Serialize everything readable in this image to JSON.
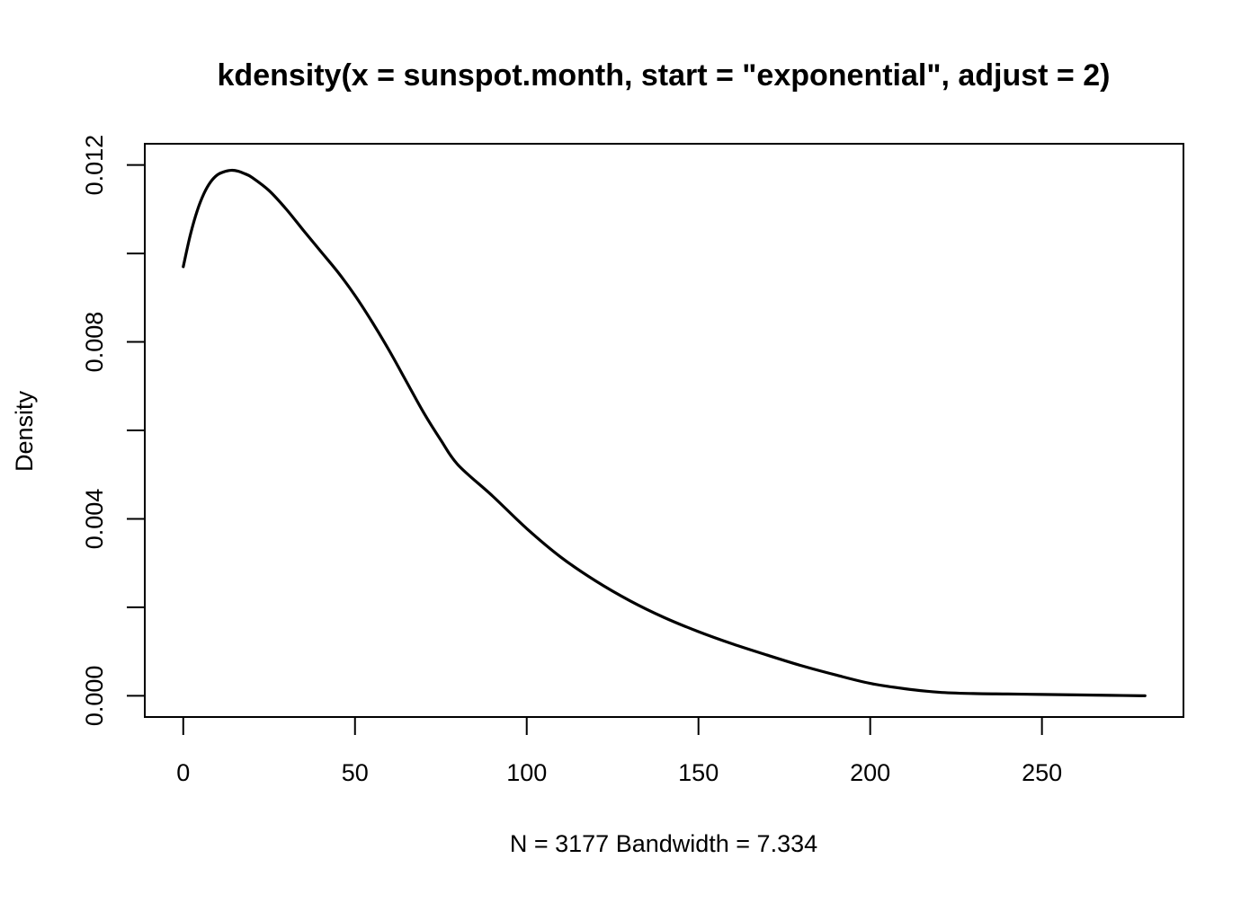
{
  "chart_data": {
    "type": "line",
    "title": "kdensity(x = sunspot.month, start = \"exponential\", adjust = 2)",
    "xlabel": "N = 3177   Bandwidth = 7.334",
    "ylabel": "Density",
    "xlim": [
      -11.2,
      291.2
    ],
    "ylim": [
      -0.00048,
      0.01248
    ],
    "x_ticks": [
      0,
      50,
      100,
      150,
      200,
      250
    ],
    "y_ticks": [
      0.0,
      0.002,
      0.004,
      0.006,
      0.008,
      0.01,
      0.012
    ],
    "y_tick_labels": [
      "0.000",
      "",
      "0.004",
      "",
      "0.008",
      "",
      "0.012"
    ],
    "grid": false,
    "legend": "none",
    "colors": {
      "line": "#000000",
      "axis": "#000000",
      "background": "#ffffff"
    },
    "series": [
      {
        "x": [
          0,
          2,
          4,
          6,
          8,
          10,
          12,
          14,
          16,
          18,
          20,
          25,
          30,
          35,
          40,
          45,
          50,
          55,
          60,
          65,
          70,
          75,
          80,
          90,
          100,
          110,
          120,
          130,
          140,
          150,
          160,
          170,
          180,
          190,
          200,
          210,
          220,
          230,
          240,
          250,
          260,
          270,
          280
        ],
        "values": [
          0.0097,
          0.0104,
          0.01095,
          0.01135,
          0.01162,
          0.01178,
          0.01185,
          0.01188,
          0.01186,
          0.0118,
          0.01172,
          0.01142,
          0.011,
          0.01052,
          0.01005,
          0.00958,
          0.00905,
          0.00845,
          0.0078,
          0.0071,
          0.0064,
          0.00578,
          0.00522,
          0.00452,
          0.00378,
          0.00313,
          0.0026,
          0.00215,
          0.00177,
          0.00145,
          0.00117,
          0.00092,
          0.00068,
          0.00047,
          0.00028,
          0.00016,
          8e-05,
          5e-05,
          4e-05,
          3e-05,
          2e-05,
          1e-05,
          0.0
        ]
      }
    ]
  }
}
